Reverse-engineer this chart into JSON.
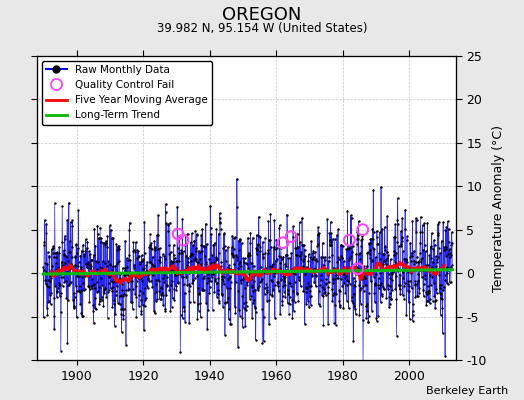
{
  "title": "OREGON",
  "subtitle": "39.982 N, 95.154 W (United States)",
  "credit": "Berkeley Earth",
  "ylabel": "Temperature Anomaly (°C)",
  "xlim": [
    1888,
    2014
  ],
  "ylim": [
    -10,
    25
  ],
  "yticks": [
    -10,
    -5,
    0,
    5,
    10,
    15,
    20,
    25
  ],
  "xticks": [
    1900,
    1920,
    1940,
    1960,
    1980,
    2000
  ],
  "seed": 17,
  "noise_std": 2.8,
  "raw_color": "#0000ff",
  "raw_marker_color": "#000000",
  "qc_color": "#ff44ff",
  "moving_avg_color": "#ff0000",
  "trend_color": "#00bb00",
  "bg_color": "#e8e8e8",
  "plot_bg_color": "#ffffff",
  "grid_color": "#b0b0b0",
  "start_year": 1890,
  "end_year": 2013
}
